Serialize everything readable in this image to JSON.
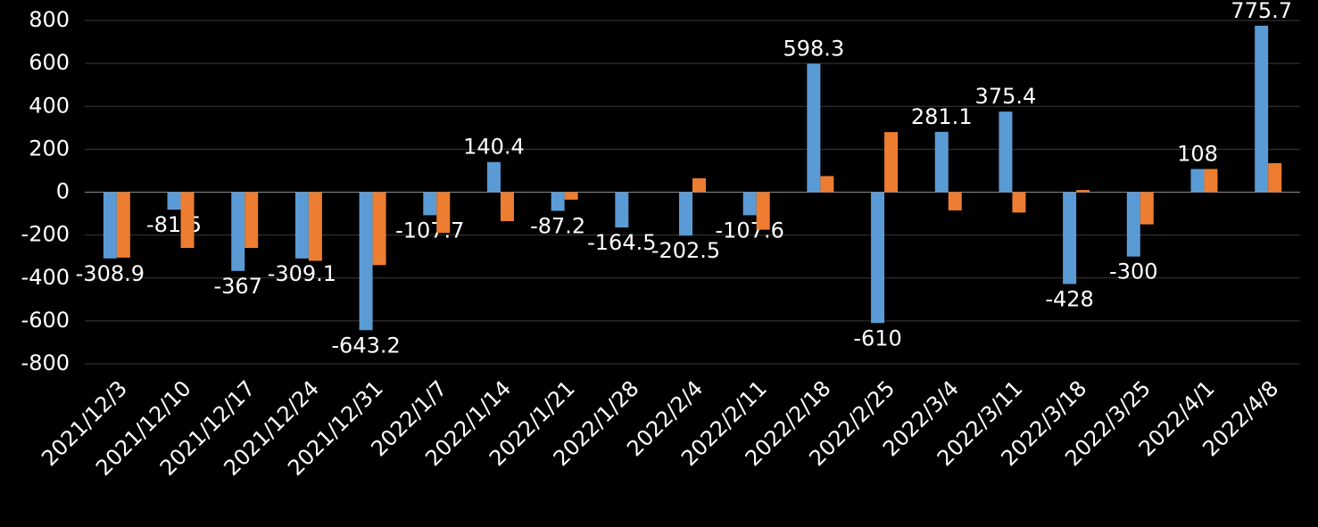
{
  "chart_data": {
    "type": "bar",
    "categories": [
      "2021/12/3",
      "2021/12/10",
      "2021/12/17",
      "2021/12/24",
      "2021/12/31",
      "2022/1/7",
      "2022/1/14",
      "2022/1/21",
      "2022/1/28",
      "2022/2/4",
      "2022/2/11",
      "2022/2/18",
      "2022/2/25",
      "2022/3/4",
      "2022/3/11",
      "2022/3/18",
      "2022/3/25",
      "2022/4/1",
      "2022/4/8"
    ],
    "series": [
      {
        "color": "#5b9bd5",
        "data_labels": true,
        "values": [
          -308.9,
          -81.5,
          -367,
          -309.1,
          -643.2,
          -107.7,
          140.4,
          -87.2,
          -164.5,
          -202.5,
          -107.6,
          598.3,
          -610,
          281.1,
          375.4,
          -428,
          -300,
          108,
          775.7
        ]
      },
      {
        "color": "#ed7d31",
        "data_labels": false,
        "values": [
          -305,
          -260,
          -260,
          -320,
          -340,
          -190,
          -135,
          -35,
          0,
          65,
          -175,
          75,
          280,
          -85,
          -95,
          10,
          -150,
          108,
          135
        ]
      }
    ],
    "ylim": [
      -800,
      800
    ],
    "yticks": [
      -800,
      -600,
      -400,
      -200,
      0,
      200,
      400,
      600,
      800
    ],
    "grid": true
  }
}
